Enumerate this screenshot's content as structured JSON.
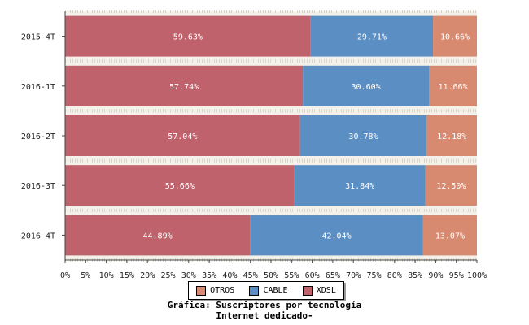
{
  "chart_data": {
    "type": "bar",
    "orientation": "horizontal",
    "stacked": true,
    "categories": [
      "2015-4T",
      "2016-1T",
      "2016-2T",
      "2016-3T",
      "2016-4T"
    ],
    "series": [
      {
        "name": "XDSL",
        "color": "#c0626b",
        "values": [
          59.63,
          57.74,
          57.04,
          55.66,
          44.89
        ],
        "labels": [
          "59.63%",
          "57.74%",
          "57.04%",
          "55.66%",
          "44.89%"
        ]
      },
      {
        "name": "CABLE",
        "color": "#5b8fc4",
        "values": [
          29.71,
          30.6,
          30.78,
          31.84,
          42.04
        ],
        "labels": [
          "29.71%",
          "30.60%",
          "30.78%",
          "31.84%",
          "42.04%"
        ]
      },
      {
        "name": "OTROS",
        "color": "#d78a70",
        "values": [
          10.66,
          11.66,
          12.18,
          12.5,
          13.07
        ],
        "labels": [
          "10.66%",
          "11.66%",
          "12.18%",
          "12.50%",
          "13.07%"
        ]
      }
    ],
    "xlim": [
      0,
      100
    ],
    "xticks": [
      "0%",
      "5%",
      "10%",
      "15%",
      "20%",
      "25%",
      "30%",
      "35%",
      "40%",
      "45%",
      "50%",
      "55%",
      "60%",
      "65%",
      "70%",
      "75%",
      "80%",
      "85%",
      "90%",
      "95%",
      "100%"
    ],
    "legend_order": [
      "OTROS",
      "CABLE",
      "XDSL"
    ],
    "legend_position": "bottom",
    "grid": false,
    "title_lines": [
      "Gráfica: Suscriptores por tecnología",
      "Internet dedicado-"
    ]
  }
}
